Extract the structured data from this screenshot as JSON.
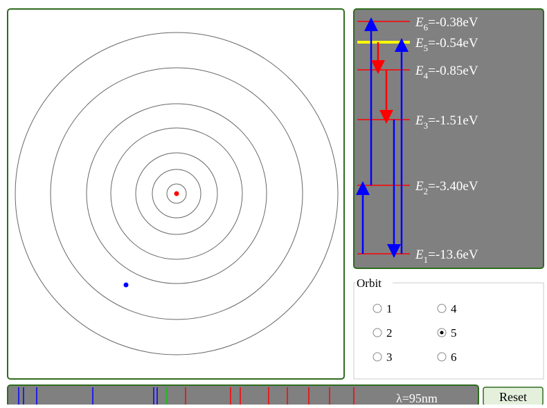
{
  "levels": [
    {
      "symbol": "E",
      "sub": "6",
      "text": "=-0.38eV"
    },
    {
      "symbol": "E",
      "sub": "5",
      "text": "=-0.54eV"
    },
    {
      "symbol": "E",
      "sub": "4",
      "text": "=-0.85eV"
    },
    {
      "symbol": "E",
      "sub": "3",
      "text": "=-1.51eV"
    },
    {
      "symbol": "E",
      "sub": "2",
      "text": "=-3.40eV"
    },
    {
      "symbol": "E",
      "sub": "1",
      "text": "=-13.6eV"
    }
  ],
  "orbit": {
    "title": "Orbit",
    "options": [
      "1",
      "2",
      "3",
      "4",
      "5",
      "6"
    ],
    "selected": 4
  },
  "wavelength": "λ=95nm",
  "reset": "Reset"
}
